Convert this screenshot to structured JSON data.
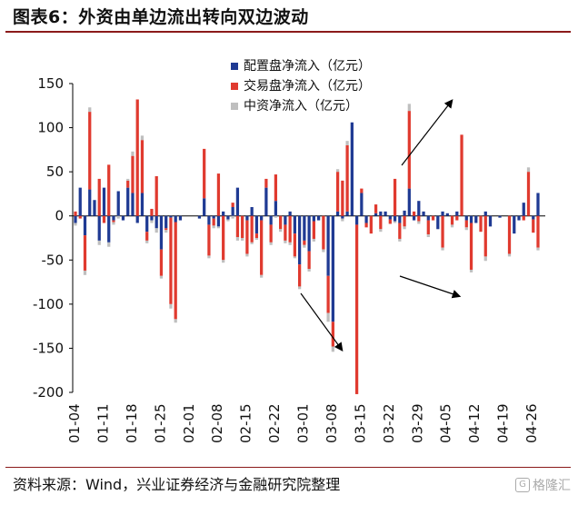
{
  "title": "图表6：外资由单边流出转向双边波动",
  "source": "资料来源：Wind，兴业证券经济与金融研究院整理",
  "watermark": "格隆汇",
  "chart_data": {
    "type": "bar",
    "stacked": true,
    "ylim": [
      -200,
      150
    ],
    "yticks": [
      150,
      100,
      50,
      0,
      -50,
      -100,
      -150,
      -200
    ],
    "xtick_labels": [
      "01-04",
      "01-11",
      "01-18",
      "01-25",
      "02-01",
      "02-08",
      "02-15",
      "02-22",
      "03-01",
      "03-08",
      "03-15",
      "03-22",
      "03-29",
      "04-05",
      "04-12",
      "04-19",
      "04-26"
    ],
    "legend_position": "top-center",
    "series": [
      {
        "name": "配置盘净流入（亿元）",
        "color": "#1f3a93",
        "values": [
          -8,
          32,
          -22,
          30,
          18,
          -28,
          32,
          -30,
          -5,
          28,
          -5,
          32,
          26,
          -8,
          26,
          -18,
          -5,
          -14,
          -38,
          -14,
          -2,
          -7,
          -5,
          0,
          0,
          0,
          -3,
          20,
          -10,
          -3,
          -12,
          5,
          -4,
          10,
          32,
          0,
          -5,
          10,
          -20,
          -5,
          32,
          -10,
          17,
          0,
          -10,
          5,
          -20,
          -55,
          -28,
          -40,
          -6,
          -5,
          0,
          -68,
          -120,
          5,
          -3,
          5,
          106,
          -10,
          26,
          -8,
          0,
          3,
          5,
          5,
          -4,
          -6,
          -8,
          6,
          31,
          -5,
          17,
          5,
          -5,
          0,
          -15,
          5,
          3,
          0,
          5,
          0,
          -5,
          -8,
          -8,
          0,
          5,
          -12,
          0,
          -2,
          0,
          0,
          -20,
          -5,
          15,
          0,
          -4,
          26
        ]
      },
      {
        "name": "交易盘净流入（亿元）",
        "color": "#e03a2f",
        "values": [
          5,
          -3,
          -40,
          88,
          0,
          42,
          -8,
          58,
          -2,
          0,
          0,
          8,
          42,
          132,
          60,
          -10,
          8,
          45,
          -30,
          -2,
          -98,
          -110,
          0,
          0,
          0,
          0,
          0,
          56,
          -35,
          -8,
          48,
          -50,
          0,
          5,
          -24,
          -25,
          -38,
          -30,
          -5,
          -62,
          10,
          -20,
          30,
          -15,
          -18,
          -30,
          -26,
          -25,
          -5,
          -20,
          -20,
          0,
          -38,
          -42,
          -28,
          45,
          40,
          75,
          0,
          -192,
          5,
          -5,
          -20,
          10,
          -15,
          0,
          -5,
          42,
          -18,
          -12,
          88,
          5,
          -6,
          0,
          -16,
          -5,
          0,
          -36,
          0,
          -10,
          -5,
          92,
          -8,
          -53,
          0,
          -18,
          -46,
          0,
          0,
          0,
          0,
          -43,
          0,
          0,
          -5,
          50,
          -15,
          -36
        ]
      },
      {
        "name": "中资净流入（亿元）",
        "color": "#bfbfbf",
        "values": [
          -3,
          0,
          -5,
          5,
          0,
          -5,
          0,
          -5,
          -3,
          -3,
          0,
          2,
          5,
          0,
          5,
          -3,
          -3,
          -5,
          -3,
          -3,
          -5,
          -4,
          0,
          0,
          0,
          0,
          0,
          0,
          -3,
          -3,
          -2,
          -3,
          -2,
          -3,
          -4,
          -3,
          -3,
          -2,
          -2,
          -3,
          0,
          -3,
          -2,
          -3,
          -3,
          -3,
          -2,
          -3,
          -3,
          -3,
          -3,
          0,
          -3,
          -10,
          -6,
          3,
          -3,
          5,
          0,
          0,
          0,
          0,
          0,
          0,
          -3,
          0,
          0,
          -2,
          -3,
          -3,
          8,
          0,
          -3,
          0,
          -3,
          0,
          0,
          -3,
          0,
          -3,
          0,
          0,
          -3,
          -3,
          0,
          0,
          -5,
          0,
          0,
          0,
          0,
          -3,
          0,
          0,
          0,
          5,
          0,
          -3
        ]
      }
    ]
  }
}
